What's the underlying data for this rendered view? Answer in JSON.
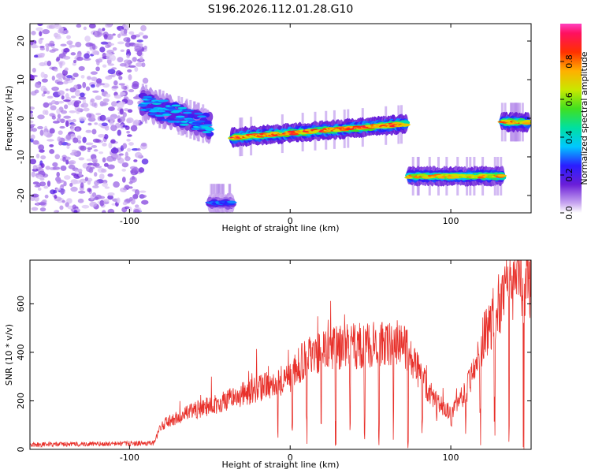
{
  "chart_data": [
    {
      "type": "heatmap",
      "title": "S196.2026.112.01.28.G10",
      "xlabel": "Height of straight line (km)",
      "ylabel": "Frequency (Hz)",
      "xlim": [
        -162,
        150
      ],
      "ylim": [
        -24.5,
        24.5
      ],
      "x_ticks": [
        -100,
        0,
        100
      ],
      "y_ticks": [
        20,
        10,
        0,
        -10,
        -20
      ],
      "colorbar": {
        "label": "Normalized spectral amplitude",
        "range": [
          0,
          1
        ],
        "ticks": [
          "0.0",
          "0.2",
          "0.4",
          "0.6",
          "0.8"
        ]
      },
      "segments": [
        {
          "x": [
            -162,
            -90
          ],
          "freq": "scattered noise",
          "amplitude": 0.15
        },
        {
          "x": [
            -92,
            -50
          ],
          "freq_start": 4,
          "freq_end": -2,
          "amplitude": 0.35
        },
        {
          "x": [
            -50,
            -36
          ],
          "freq": -22,
          "amplitude": 0.3
        },
        {
          "x": [
            -36,
            72
          ],
          "freq_start": -5,
          "freq_end": -1.5,
          "amplitude": 0.85
        },
        {
          "x": [
            74,
            132
          ],
          "freq": -15,
          "amplitude": 0.75
        },
        {
          "x": [
            132,
            148
          ],
          "freq": -1,
          "amplitude": 0.8
        }
      ]
    },
    {
      "type": "line",
      "xlabel": "Height of straight line (km)",
      "ylabel": "SNR (10 * v/v)",
      "xlim": [
        -162,
        150
      ],
      "ylim": [
        0,
        780
      ],
      "x_ticks": [
        -100,
        0,
        100
      ],
      "y_ticks": [
        0,
        200,
        400,
        600
      ],
      "color": "#e8312b",
      "series": [
        {
          "x": [
            -162,
            -120,
            -85,
            -80,
            -60,
            -40,
            -20,
            0,
            10,
            30,
            50,
            70,
            80,
            90,
            100,
            110,
            120,
            130,
            140,
            150
          ],
          "values": [
            20,
            22,
            25,
            100,
            160,
            200,
            250,
            300,
            380,
            420,
            430,
            440,
            320,
            200,
            150,
            250,
            450,
            600,
            680,
            700
          ]
        }
      ]
    }
  ]
}
